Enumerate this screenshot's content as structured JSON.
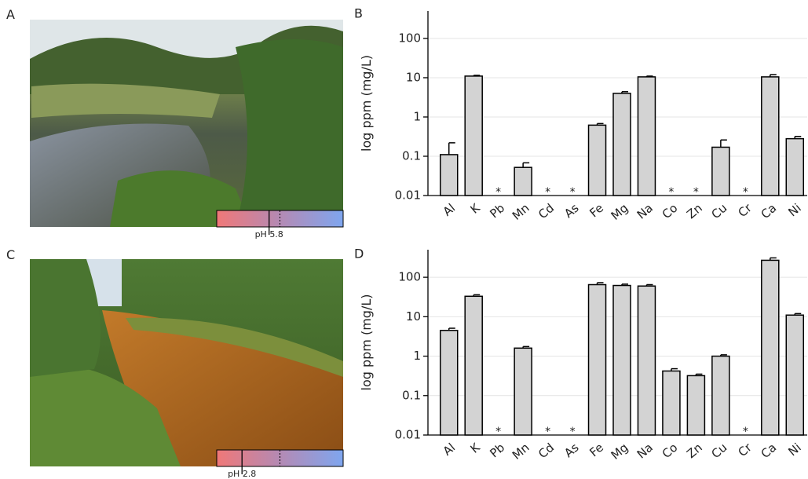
{
  "panels": [
    {
      "label": "A",
      "ph": {
        "value": 5.8,
        "label": "pH 5.8"
      }
    },
    {
      "label": "C",
      "ph": {
        "value": 2.8,
        "label": "pH 2.8"
      }
    }
  ],
  "ph_lim": [
    0,
    14
  ],
  "chart_data": [
    {
      "type": "bar",
      "label": "B",
      "y_label": "log ppm (mg/L)",
      "categories": [
        "Al",
        "K",
        "Pb",
        "Mn",
        "Cd",
        "As",
        "Fe",
        "Mg",
        "Na",
        "Co",
        "Zn",
        "Cu",
        "Cr",
        "Ca",
        "Ni"
      ],
      "values": [
        0.11,
        11,
        null,
        0.052,
        null,
        null,
        0.62,
        4.0,
        10.5,
        null,
        null,
        0.17,
        null,
        10.5,
        0.28
      ],
      "errors": [
        0.11,
        0.5,
        null,
        0.016,
        null,
        null,
        0.06,
        0.4,
        0.5,
        null,
        null,
        0.09,
        null,
        1.5,
        0.04
      ],
      "missing_label": "*",
      "color": "#d3d3d3",
      "ylim": [
        0.01,
        500
      ],
      "yticks": [
        0.01,
        0.1,
        1,
        10,
        100
      ],
      "log_scale": true,
      "grid": true
    },
    {
      "type": "bar",
      "label": "D",
      "y_label": "log ppm (mg/L)",
      "categories": [
        "Al",
        "K",
        "Pb",
        "Mn",
        "Cd",
        "As",
        "Fe",
        "Mg",
        "Na",
        "Co",
        "Zn",
        "Cu",
        "Cr",
        "Ca",
        "Ni"
      ],
      "values": [
        4.5,
        33,
        null,
        1.6,
        null,
        null,
        65,
        62,
        60,
        0.42,
        0.32,
        1.0,
        null,
        270,
        11
      ],
      "errors": [
        0.6,
        3,
        null,
        0.15,
        null,
        null,
        8,
        5,
        5,
        0.06,
        0.03,
        0.08,
        null,
        40,
        1
      ],
      "missing_label": "*",
      "color": "#d3d3d3",
      "ylim": [
        0.01,
        500
      ],
      "yticks": [
        0.01,
        0.1,
        1,
        10,
        100
      ],
      "log_scale": true,
      "grid": true
    }
  ]
}
